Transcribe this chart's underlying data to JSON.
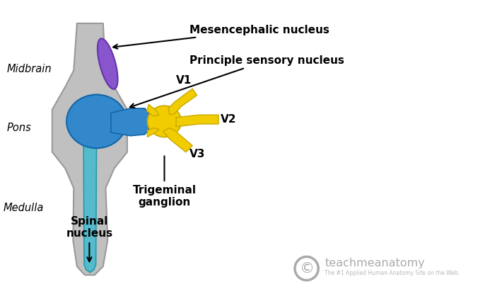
{
  "bg_color": "#ffffff",
  "brainstem_color": "#c0c0c0",
  "brainstem_edge": "#999999",
  "purple_nucleus_color": "#8855cc",
  "purple_nucleus_edge": "#6633aa",
  "blue_nucleus_color": "#3388cc",
  "blue_nucleus_edge": "#1166aa",
  "cyan_tract_color": "#55bbcc",
  "cyan_tract_edge": "#2299aa",
  "yellow_ganglion_color": "#f0cc00",
  "yellow_ganglion_edge": "#c8aa00",
  "text_color": "#000000",
  "label_midbrain": "Midbrain",
  "label_pons": "Pons",
  "label_medulla": "Medulla",
  "label_mesencephalic": "Mesencephalic nucleus",
  "label_principle": "Principle sensory nucleus",
  "label_V1": "V1",
  "label_V2": "V2",
  "label_V3": "V3",
  "label_trigeminal": "Trigeminal\nganglion",
  "label_spinal": "Spinal\nnucleus",
  "watermark_text": "teachmeanatomy",
  "watermark_sub": "The #1 Applied Human Anatomy Site on the Web.",
  "watermark_color": "#aaaaaa",
  "watermark_sub_color": "#bbbbbb"
}
